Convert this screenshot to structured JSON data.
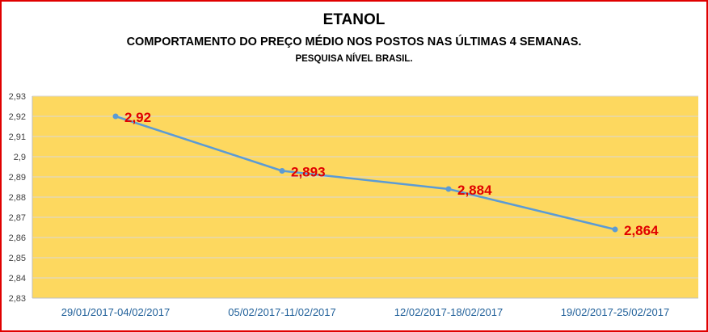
{
  "header": {
    "title": "ETANOL",
    "subtitle": "COMPORTAMENTO DO PREÇO MÉDIO NOS POSTOS NAS ÚLTIMAS  4 SEMANAS.",
    "note": "PESQUISA NÍVEL BRASIL."
  },
  "colors": {
    "plot_background": "#fdd85f",
    "line": "#5b9bd5",
    "data_label": "#e00000",
    "x_tick_label": "#1f5f99",
    "border": "#e00000"
  },
  "chart_data": {
    "type": "line",
    "title": "ETANOL",
    "categories": [
      "29/01/2017-04/02/2017",
      "05/02/2017-11/02/2017",
      "12/02/2017-18/02/2017",
      "19/02/2017-25/02/2017"
    ],
    "values": [
      2.92,
      2.893,
      2.884,
      2.864
    ],
    "data_labels": [
      "2,92",
      "2,893",
      "2,884",
      "2,864"
    ],
    "ylim": [
      2.83,
      2.93
    ],
    "y_ticks": [
      "2,83",
      "2,84",
      "2,85",
      "2,86",
      "2,87",
      "2,88",
      "2,89",
      "2,9",
      "2,91",
      "2,92",
      "2,93"
    ],
    "grid": true,
    "legend": "none"
  }
}
